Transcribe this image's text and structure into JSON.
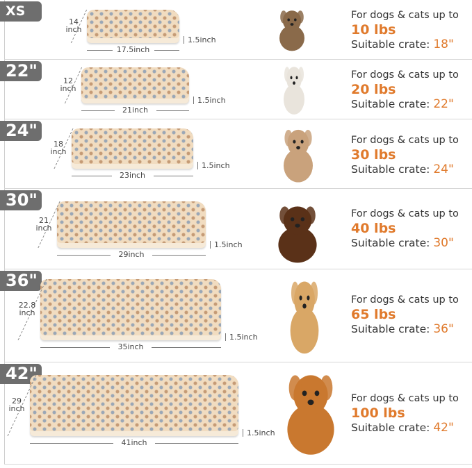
{
  "accent_color": "#e07a2c",
  "badge_color": "#6e6e6e",
  "rows": [
    {
      "size": "XS",
      "depth": "14",
      "depth_unit": "inch",
      "width": "17.5inch",
      "thickness": "1.5inch",
      "line1": "For dogs & cats up to",
      "weight": "10 lbs",
      "crate_label": "Suitable crate:",
      "crate": "18\"",
      "animal": "yorkie-dog"
    },
    {
      "size": "22\"",
      "depth": "12",
      "depth_unit": "inch",
      "width": "21inch",
      "thickness": "1.5inch",
      "line1": "For dogs & cats up to",
      "weight": "20 lbs",
      "crate_label": "Suitable crate:",
      "crate": "22\"",
      "animal": "ragdoll-cat"
    },
    {
      "size": "24\"",
      "depth": "18",
      "depth_unit": "inch",
      "width": "23inch",
      "thickness": "1.5inch",
      "line1": "For dogs & cats up to",
      "weight": "30 lbs",
      "crate_label": "Suitable crate:",
      "crate": "24\"",
      "animal": "french-bulldog"
    },
    {
      "size": "30\"",
      "depth": "21",
      "depth_unit": "inch",
      "width": "29inch",
      "thickness": "1.5inch",
      "line1": "For dogs & cats up to",
      "weight": "40 lbs",
      "crate_label": "Suitable crate:",
      "crate": "30\"",
      "animal": "dachshund"
    },
    {
      "size": "36\"",
      "depth": "22.8",
      "depth_unit": "inch",
      "width": "35inch",
      "thickness": "1.5inch",
      "line1": "For dogs & cats up to",
      "weight": "65 lbs",
      "crate_label": "Suitable crate:",
      "crate": "36\"",
      "animal": "golden-retriever-sitting"
    },
    {
      "size": "42\"",
      "depth": "29",
      "depth_unit": "inch",
      "width": "41inch",
      "thickness": "1.5inch",
      "line1": "For dogs & cats up to",
      "weight": "100 lbs",
      "crate_label": "Suitable crate:",
      "crate": "42\"",
      "animal": "golden-retriever-lying"
    }
  ]
}
